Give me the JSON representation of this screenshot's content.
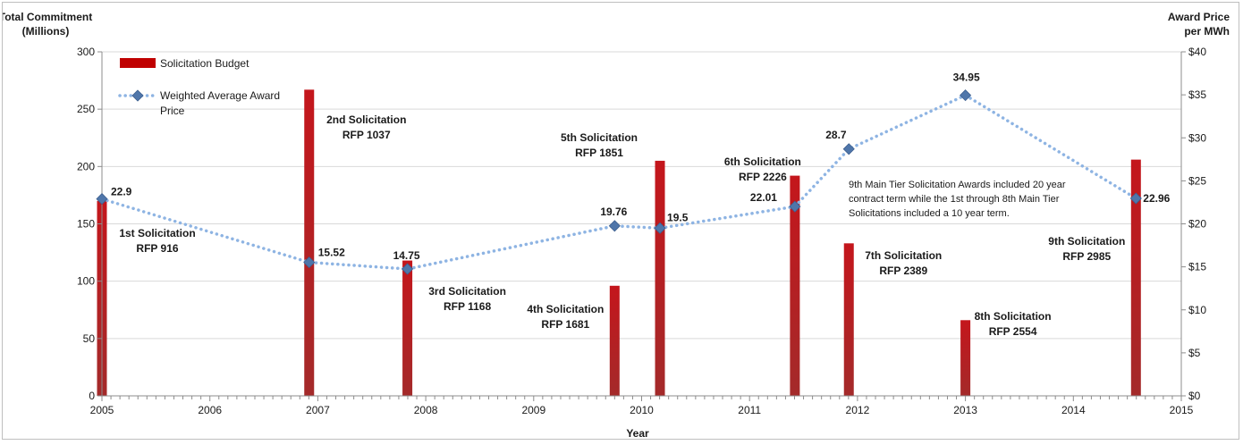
{
  "chart_data": {
    "type": "bar",
    "xlabel": "Year",
    "ylabel_left": [
      "Total Commitment",
      "(Millions)"
    ],
    "ylabel_right": [
      "Award Price",
      "per MWh"
    ],
    "x_ticks": [
      "2005",
      "2006",
      "2007",
      "2008",
      "2009",
      "2010",
      "2011",
      "2012",
      "2013",
      "2014",
      "2015"
    ],
    "xlim": [
      2005,
      2015
    ],
    "ylim_left": [
      0,
      300
    ],
    "y_ticks_left": [
      "0",
      "50",
      "100",
      "150",
      "200",
      "250",
      "300"
    ],
    "ylim_right": [
      0,
      40
    ],
    "y_ticks_right": [
      "$0",
      "$5",
      "$10",
      "$15",
      "$20",
      "$25",
      "$30",
      "$35",
      "$40"
    ],
    "grid": "horizontal",
    "legend": {
      "placement": "top-left",
      "entries": [
        "Solicitation Budget",
        "Weighted Average Award Price"
      ]
    },
    "series": [
      {
        "name": "Solicitation Budget",
        "type": "bar",
        "axis": "left",
        "color": "#c00000",
        "bars": [
          {
            "x": 2005.0,
            "value": 170,
            "labels": [
              "1st Solicitation",
              "RFP 916"
            ]
          },
          {
            "x": 2006.92,
            "value": 267,
            "labels": [
              "2nd Solicitation",
              "RFP 1037"
            ]
          },
          {
            "x": 2007.83,
            "value": 118,
            "labels": [
              "3rd Solicitation",
              "RFP 1168"
            ]
          },
          {
            "x": 2009.75,
            "value": 96,
            "labels": [
              "4th Solicitation",
              "RFP 1681"
            ]
          },
          {
            "x": 2010.17,
            "value": 205,
            "labels": [
              "5th Solicitation",
              "RFP 1851"
            ]
          },
          {
            "x": 2011.42,
            "value": 192,
            "labels": [
              "6th Solicitation",
              "RFP 2226"
            ]
          },
          {
            "x": 2011.92,
            "value": 133,
            "labels": [
              "7th Solicitation",
              "RFP 2389"
            ]
          },
          {
            "x": 2013.0,
            "value": 66,
            "labels": [
              "8th Solicitation",
              "RFP 2554"
            ]
          },
          {
            "x": 2014.58,
            "value": 206,
            "labels": [
              "9th Solicitation",
              "RFP 2985"
            ]
          }
        ]
      },
      {
        "name": "Weighted Average Award Price",
        "type": "line",
        "style": "dotted",
        "marker": "diamond",
        "axis": "right",
        "color": "#8eb4e3",
        "marker_color": "#4f76aa",
        "points": [
          {
            "x": 2005.0,
            "y": 22.9,
            "label": "22.9"
          },
          {
            "x": 2006.92,
            "y": 15.52,
            "label": "15.52"
          },
          {
            "x": 2007.83,
            "y": 14.75,
            "label": "14.75"
          },
          {
            "x": 2009.75,
            "y": 19.76,
            "label": "19.76"
          },
          {
            "x": 2010.17,
            "y": 19.5,
            "label": "19.5"
          },
          {
            "x": 2011.42,
            "y": 22.01,
            "label": "22.01"
          },
          {
            "x": 2011.92,
            "y": 28.7,
            "label": "28.7"
          },
          {
            "x": 2013.0,
            "y": 34.95,
            "label": "34.95"
          },
          {
            "x": 2014.58,
            "y": 22.96,
            "label": "22.96"
          }
        ]
      }
    ],
    "annotation": [
      "9th Main Tier Solicitation Awards included 20 year",
      "contract term while the 1st through 8th Main Tier",
      "Solicitations included a 10 year term."
    ]
  }
}
